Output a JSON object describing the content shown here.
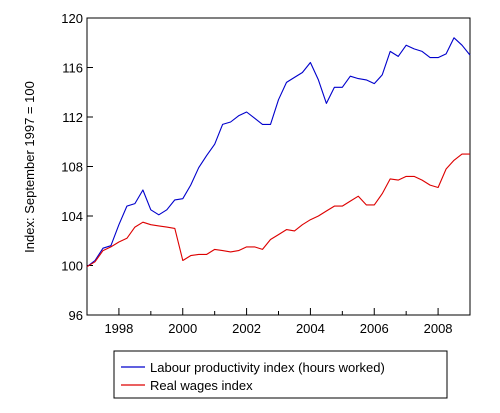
{
  "chart_data": {
    "type": "line",
    "title": "",
    "xlabel": "",
    "ylabel": "Index: September 1997 = 100",
    "xlim": [
      1997.0,
      2009.0
    ],
    "ylim": [
      96,
      120
    ],
    "yticks": [
      96,
      100,
      104,
      108,
      112,
      116,
      120
    ],
    "xticks": [
      1998,
      2000,
      2002,
      2004,
      2006,
      2008
    ],
    "grid": false,
    "legend_position": "below",
    "series": [
      {
        "name": "Labour productivity index (hours worked)",
        "color": "#0000cc",
        "x": [
          1997.0,
          1997.25,
          1997.5,
          1997.75,
          1998.0,
          1998.25,
          1998.5,
          1998.75,
          1999.0,
          1999.25,
          1999.5,
          1999.75,
          2000.0,
          2000.25,
          2000.5,
          2000.75,
          2001.0,
          2001.25,
          2001.5,
          2001.75,
          2002.0,
          2002.25,
          2002.5,
          2002.75,
          2003.0,
          2003.25,
          2003.5,
          2003.75,
          2004.0,
          2004.25,
          2004.5,
          2004.75,
          2005.0,
          2005.25,
          2005.5,
          2005.75,
          2006.0,
          2006.25,
          2006.5,
          2006.75,
          2007.0,
          2007.25,
          2007.5,
          2007.75,
          2008.0,
          2008.25,
          2008.5,
          2008.75,
          2009.0
        ],
        "values": [
          99.9,
          100.4,
          101.4,
          101.6,
          103.3,
          104.8,
          105.0,
          106.1,
          104.5,
          104.1,
          104.5,
          105.3,
          105.4,
          106.5,
          107.9,
          108.9,
          109.8,
          111.4,
          111.6,
          112.1,
          112.4,
          111.9,
          111.4,
          111.4,
          113.4,
          114.8,
          115.2,
          115.6,
          116.4,
          115.0,
          113.1,
          114.4,
          114.4,
          115.3,
          115.1,
          115.0,
          114.7,
          115.4,
          117.3,
          116.9,
          117.8,
          117.5,
          117.3,
          116.8,
          116.8,
          117.1,
          118.4,
          117.8,
          117.0
        ]
      },
      {
        "name": "Real wages index",
        "color": "#dd0000",
        "x": [
          1997.0,
          1997.25,
          1997.5,
          1997.75,
          1998.0,
          1998.25,
          1998.5,
          1998.75,
          1999.0,
          1999.25,
          1999.5,
          1999.75,
          2000.0,
          2000.25,
          2000.5,
          2000.75,
          2001.0,
          2001.25,
          2001.5,
          2001.75,
          2002.0,
          2002.25,
          2002.5,
          2002.75,
          2003.0,
          2003.25,
          2003.5,
          2003.75,
          2004.0,
          2004.25,
          2004.5,
          2004.75,
          2005.0,
          2005.25,
          2005.5,
          2005.75,
          2006.0,
          2006.25,
          2006.5,
          2006.75,
          2007.0,
          2007.25,
          2007.5,
          2007.75,
          2008.0,
          2008.25,
          2008.5,
          2008.75,
          2009.0
        ],
        "values": [
          99.9,
          100.3,
          101.2,
          101.5,
          101.9,
          102.2,
          103.1,
          103.5,
          103.3,
          103.2,
          103.1,
          103.0,
          100.4,
          100.8,
          100.9,
          100.9,
          101.3,
          101.2,
          101.1,
          101.2,
          101.5,
          101.5,
          101.3,
          102.1,
          102.5,
          102.9,
          102.8,
          103.3,
          103.7,
          104.0,
          104.4,
          104.8,
          104.8,
          105.2,
          105.6,
          104.9,
          104.9,
          105.8,
          107.0,
          106.9,
          107.2,
          107.2,
          106.9,
          106.5,
          106.3,
          107.8,
          108.5,
          109.0,
          109.0
        ]
      }
    ]
  }
}
